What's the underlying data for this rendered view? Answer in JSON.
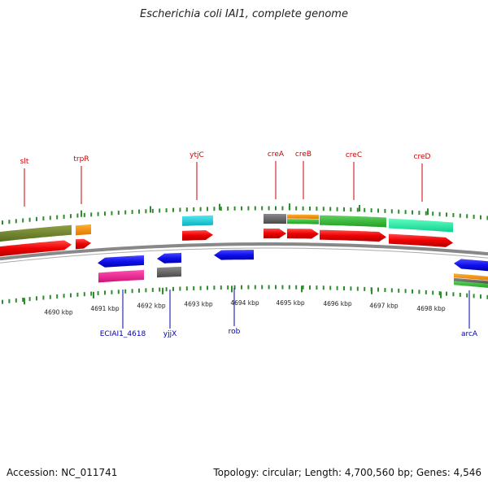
{
  "header": {
    "title": "Escherichia coli IAI1, complete genome"
  },
  "footer": {
    "accession": "Accession: NC_011741",
    "summary": "Topology: circular; Length: 4,700,560 bp; Genes: 4,546"
  },
  "colors": {
    "top_label": "#cc0000",
    "bottom_label": "#0000aa",
    "tick": "#2e8b2e",
    "backbone": "#888888"
  },
  "scale_labels": [
    "4690 kbp",
    "4691 kbp",
    "4692 kbp",
    "4693 kbp",
    "4694 kbp",
    "4695 kbp",
    "4696 kbp",
    "4697 kbp",
    "4698 kbp"
  ],
  "top_genes": [
    "slt",
    "trpR",
    "ytjC",
    "creA",
    "creB",
    "creC",
    "creD"
  ],
  "bottom_genes": [
    "ECIAI1_4618",
    "yjjX",
    "rob",
    "arcA"
  ],
  "feature_colors": [
    "olive",
    "orange",
    "cyan",
    "gray",
    "green",
    "mint",
    "red",
    "blue",
    "magenta"
  ]
}
